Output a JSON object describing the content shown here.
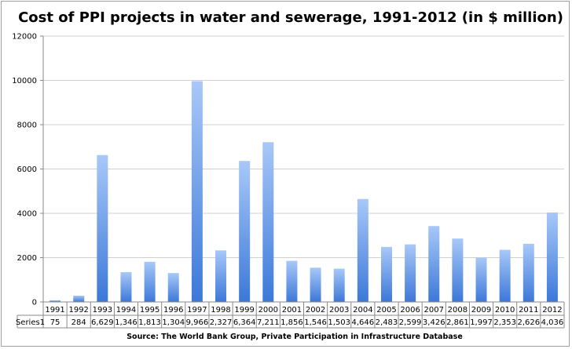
{
  "chart_data": {
    "type": "bar",
    "title": "Cost of PPI projects in water and sewerage, 1991-2012 (in $ million)",
    "categories": [
      "1991",
      "1992",
      "1993",
      "1994",
      "1995",
      "1996",
      "1997",
      "1998",
      "1999",
      "2000",
      "2001",
      "2002",
      "2003",
      "2004",
      "2005",
      "2006",
      "2007",
      "2008",
      "2009",
      "2010",
      "2011",
      "2012"
    ],
    "series": [
      {
        "name": "Series1",
        "values": [
          75,
          284,
          6629,
          1346,
          1813,
          1304,
          9966,
          2327,
          6364,
          7211,
          1856,
          1546,
          1503,
          4646,
          2483,
          2599,
          3426,
          2861,
          1997,
          2353,
          2626,
          4036
        ]
      }
    ],
    "table_values": [
      "75",
      "284",
      "6,629",
      "1,346",
      "1,813",
      "1,304",
      "9,966",
      "2,327",
      "6,364",
      "7,211",
      "1,856",
      "1,546",
      "1,503",
      "4,646",
      "2,483",
      "2,599",
      "3,426",
      "2,861",
      "1,997",
      "2,353",
      "2,626",
      "4,036"
    ],
    "ylim": [
      0,
      12000
    ],
    "yticks": [
      "0",
      "2000",
      "4000",
      "6000",
      "8000",
      "10000",
      "12000"
    ],
    "grid": true,
    "legend": "data table below chart",
    "source": "Source: The World Bank Group, Private Participation in Infrastructure Database",
    "colors": {
      "bar_top": "#a8c8f8",
      "bar_bottom": "#3c78d8",
      "grid": "#d0d0d0"
    }
  }
}
